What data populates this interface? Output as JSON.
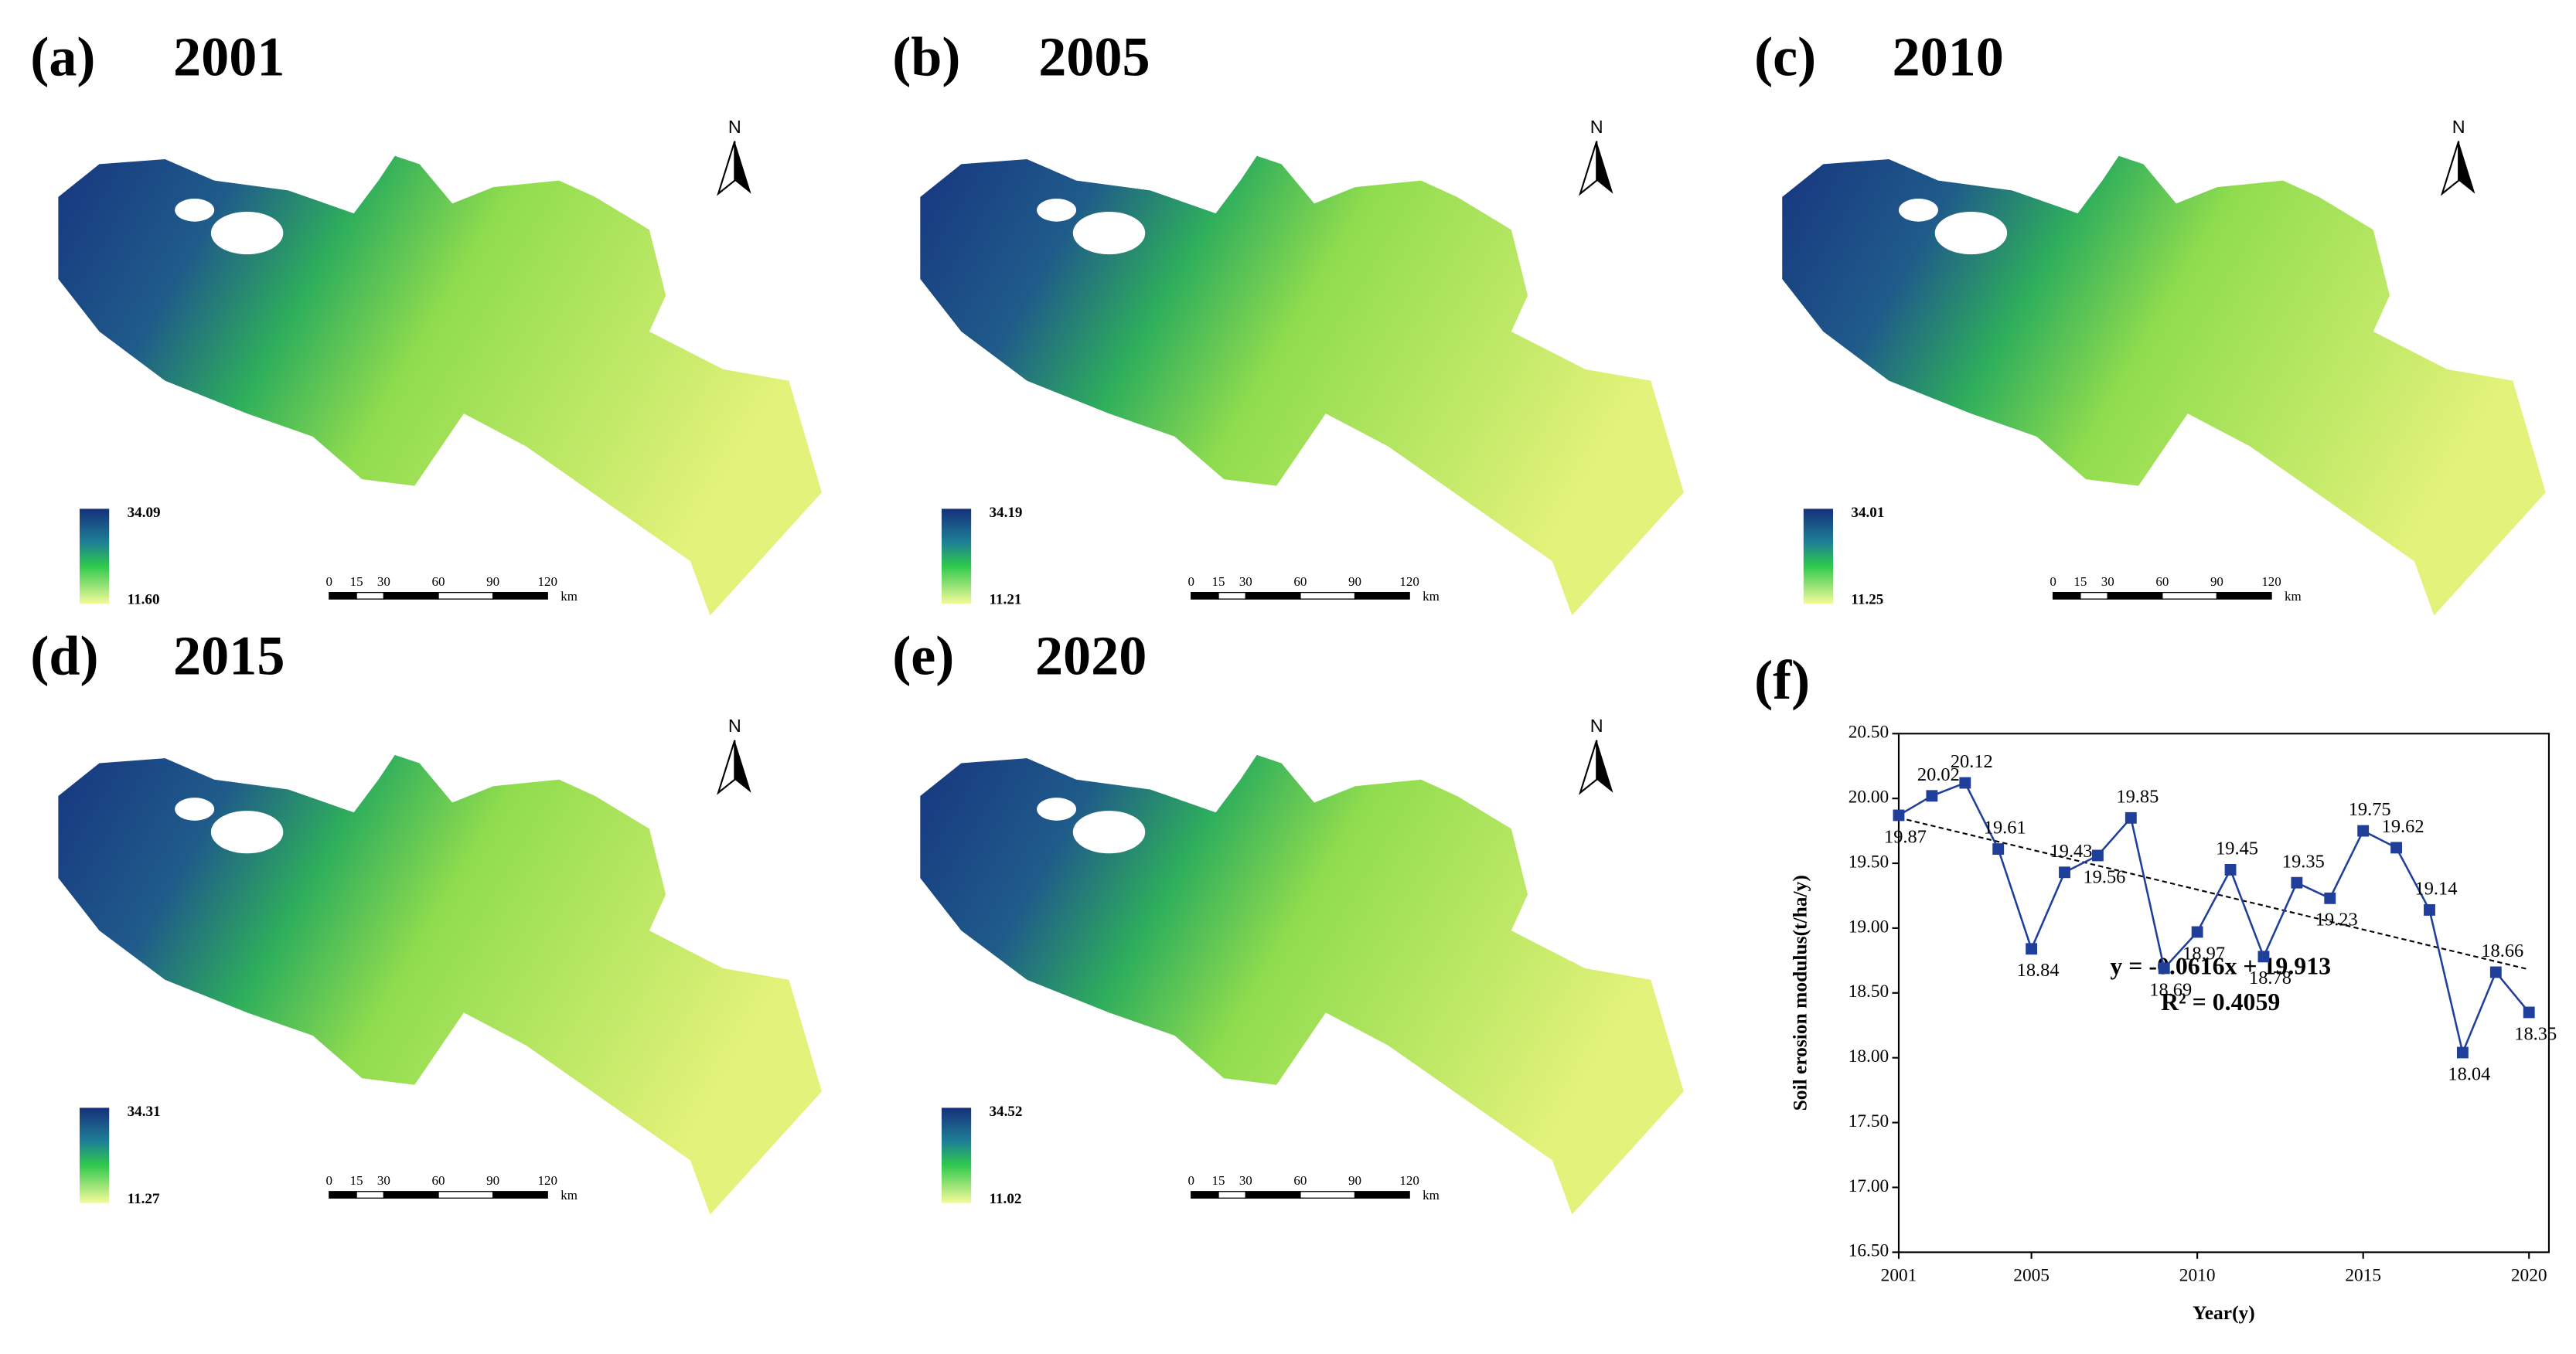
{
  "panels": [
    {
      "label": "(a)",
      "year": "2001",
      "legend_max": "34.09",
      "legend_min": "11.60",
      "north": "N",
      "scale_ticks": [
        0,
        15,
        30,
        60,
        90,
        120
      ],
      "scale_unit": "km"
    },
    {
      "label": "(b)",
      "year": "2005",
      "legend_max": "34.19",
      "legend_min": "11.21",
      "north": "N",
      "scale_ticks": [
        0,
        15,
        30,
        60,
        90,
        120
      ],
      "scale_unit": "km"
    },
    {
      "label": "(c)",
      "year": "2010",
      "legend_max": "34.01",
      "legend_min": "11.25",
      "north": "N",
      "scale_ticks": [
        0,
        15,
        30,
        60,
        90,
        120
      ],
      "scale_unit": "km"
    },
    {
      "label": "(d)",
      "year": "2015",
      "legend_max": "34.31",
      "legend_min": "11.27",
      "north": "N",
      "scale_ticks": [
        0,
        15,
        30,
        60,
        90,
        120
      ],
      "scale_unit": "km"
    },
    {
      "label": "(e)",
      "year": "2020",
      "legend_max": "34.52",
      "legend_min": "11.02",
      "north": "N",
      "scale_ticks": [
        0,
        15,
        30,
        60,
        90,
        120
      ],
      "scale_unit": "km"
    }
  ],
  "chart_data": {
    "type": "line",
    "title": "(f)",
    "x": [
      2001,
      2002,
      2003,
      2004,
      2005,
      2006,
      2007,
      2008,
      2009,
      2010,
      2011,
      2012,
      2013,
      2014,
      2015,
      2016,
      2017,
      2018,
      2019,
      2020
    ],
    "values": [
      19.87,
      20.02,
      20.12,
      19.61,
      18.84,
      19.43,
      19.56,
      19.85,
      18.69,
      18.97,
      19.45,
      18.78,
      19.35,
      19.23,
      19.75,
      19.62,
      19.14,
      18.04,
      18.66,
      18.35
    ],
    "color": "#1f3f9a",
    "xlim": [
      2001,
      2020.6
    ],
    "xticks": [
      2001,
      2005,
      2010,
      2015,
      2020
    ],
    "ylim": [
      16.5,
      20.5
    ],
    "yticks": [
      {
        "value": 16.5,
        "label": "16.50"
      },
      {
        "value": 17,
        "label": "17.00"
      },
      {
        "value": 17.5,
        "label": "17.50"
      },
      {
        "value": 18,
        "label": "18.00"
      },
      {
        "value": 18.5,
        "label": "18.50"
      },
      {
        "value": 19,
        "label": "19.00"
      },
      {
        "value": 19.5,
        "label": "19.50"
      },
      {
        "value": 20,
        "label": "20.00"
      },
      {
        "value": 20.5,
        "label": "20.50"
      }
    ],
    "xlabel": "Year(y)",
    "ylabel": "Soil erosion modulus(t/ha/y)",
    "trend": {
      "slope": -0.0616,
      "intercept": 19.913,
      "equation": "y = -0.0616x + 19.913",
      "r2": "R² = 0.4059"
    }
  }
}
